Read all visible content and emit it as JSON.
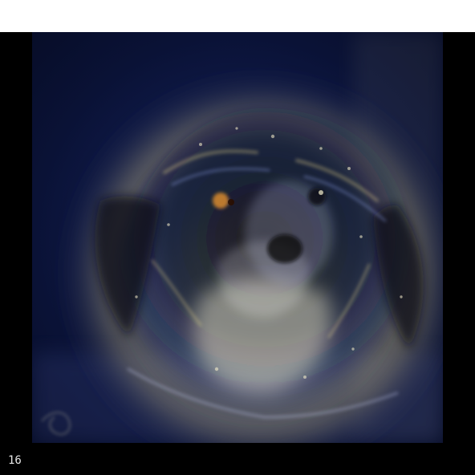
{
  "caption": {
    "frame_number": "16"
  },
  "colors": {
    "top_strip": "#ffffff",
    "background": "#000000",
    "deep_blue": "#0f1a4a",
    "glow_yellow": "#e5d27a",
    "warm_white": "#f4f0da"
  }
}
